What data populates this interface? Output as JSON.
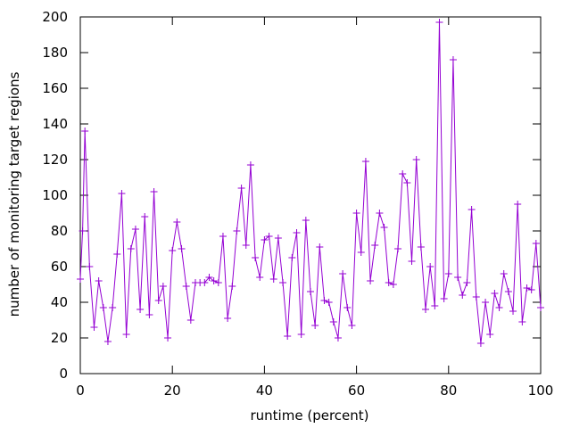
{
  "chart_data": {
    "type": "line",
    "title": "",
    "xlabel": "runtime (percent)",
    "ylabel": "number of monitoring target regions",
    "xlim": [
      0,
      100
    ],
    "ylim": [
      0,
      200
    ],
    "xticks": [
      0,
      20,
      40,
      60,
      80,
      100
    ],
    "yticks": [
      0,
      20,
      40,
      60,
      80,
      100,
      120,
      140,
      160,
      180,
      200
    ],
    "grid": false,
    "legend": "none",
    "series": [
      {
        "color": "#9400d3",
        "marker": "plus",
        "x": [
          0,
          0.5,
          1,
          2,
          3,
          4,
          5,
          6,
          7,
          8,
          9,
          10,
          11,
          12,
          13,
          14,
          15,
          16,
          17,
          18,
          19,
          20,
          21,
          22,
          23,
          24,
          25,
          26,
          27,
          28,
          29,
          30,
          31,
          32,
          33,
          34,
          35,
          36,
          37,
          38,
          39,
          40,
          41,
          42,
          43,
          44,
          45,
          46,
          47,
          48,
          49,
          50,
          51,
          52,
          53,
          54,
          55,
          56,
          57,
          58,
          59,
          60,
          61,
          62,
          63,
          64,
          65,
          66,
          67,
          68,
          69,
          70,
          71,
          72,
          73,
          74,
          75,
          76,
          77,
          78,
          79,
          80,
          81,
          82,
          83,
          84,
          85,
          86,
          87,
          88,
          89,
          90,
          91,
          92,
          93,
          94,
          95,
          96,
          97,
          98,
          99,
          100
        ],
        "y": [
          53,
          80,
          136,
          60,
          26,
          52,
          37,
          18,
          37,
          67,
          101,
          22,
          70,
          81,
          36,
          88,
          33,
          102,
          41,
          49,
          20,
          69,
          85,
          70,
          49,
          30,
          51,
          51,
          51,
          54,
          52,
          51,
          77,
          31,
          49,
          80,
          104,
          72,
          117,
          65,
          54,
          75,
          77,
          53,
          76,
          51,
          21,
          65,
          79,
          22,
          86,
          46,
          27,
          71,
          41,
          40,
          29,
          20,
          56,
          37,
          27,
          90,
          68,
          119,
          52,
          72,
          90,
          82,
          51,
          50,
          70,
          112,
          107,
          63,
          120,
          71,
          36,
          60,
          38,
          197,
          42,
          56,
          176,
          54,
          44,
          51,
          92,
          43,
          17,
          40,
          22,
          45,
          37,
          56,
          46,
          35,
          95,
          29,
          48,
          47,
          73,
          37
        ]
      }
    ]
  }
}
